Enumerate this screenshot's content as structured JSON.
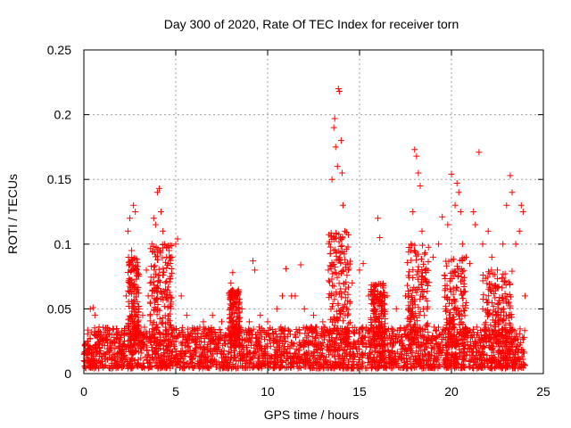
{
  "chart_data": {
    "type": "scatter",
    "title": "Day 300 of 2020, Rate Of TEC Index for receiver torn",
    "xlabel": "GPS time / hours",
    "ylabel": "ROTI / TECUs",
    "xlim": [
      0,
      25
    ],
    "ylim": [
      0,
      0.25
    ],
    "xticks": [
      0,
      5,
      10,
      15,
      20,
      25
    ],
    "xtick_labels": [
      "0",
      "5",
      "10",
      "15",
      "20",
      "25"
    ],
    "yticks": [
      0,
      0.05,
      0.1,
      0.15,
      0.2,
      0.25
    ],
    "ytick_labels": [
      "0",
      "0.05",
      "0.1",
      "0.15",
      "0.2",
      "0.25"
    ],
    "grid": true,
    "marker": "+",
    "marker_color": "#ff0000",
    "series": [
      {
        "name": "",
        "color": "#ff0000",
        "points": [
          [
            0.0,
            0.01
          ],
          [
            0.2,
            0.025
          ],
          [
            0.35,
            0.05
          ],
          [
            0.4,
            0.032
          ],
          [
            0.5,
            0.051
          ],
          [
            0.6,
            0.045
          ],
          [
            0.8,
            0.03
          ],
          [
            1.0,
            0.022
          ],
          [
            1.2,
            0.035
          ],
          [
            1.4,
            0.02
          ],
          [
            1.8,
            0.03
          ],
          [
            2.0,
            0.028
          ],
          [
            2.3,
            0.06
          ],
          [
            2.4,
            0.11
          ],
          [
            2.5,
            0.12
          ],
          [
            2.6,
            0.095
          ],
          [
            2.7,
            0.13
          ],
          [
            2.8,
            0.125
          ],
          [
            3.0,
            0.05
          ],
          [
            3.2,
            0.045
          ],
          [
            3.4,
            0.08
          ],
          [
            3.5,
            0.06
          ],
          [
            3.6,
            0.07
          ],
          [
            3.7,
            0.1
          ],
          [
            3.8,
            0.12
          ],
          [
            3.9,
            0.115
          ],
          [
            4.0,
            0.14
          ],
          [
            4.1,
            0.143
          ],
          [
            4.2,
            0.125
          ],
          [
            4.3,
            0.11
          ],
          [
            4.4,
            0.1
          ],
          [
            4.5,
            0.09
          ],
          [
            4.6,
            0.085
          ],
          [
            4.7,
            0.075
          ],
          [
            4.8,
            0.09
          ],
          [
            5.0,
            0.1
          ],
          [
            5.1,
            0.104
          ],
          [
            5.3,
            0.06
          ],
          [
            5.6,
            0.045
          ],
          [
            6.0,
            0.035
          ],
          [
            6.5,
            0.04
          ],
          [
            7.0,
            0.045
          ],
          [
            7.5,
            0.04
          ],
          [
            8.0,
            0.07
          ],
          [
            8.1,
            0.078
          ],
          [
            8.3,
            0.06
          ],
          [
            8.6,
            0.05
          ],
          [
            9.0,
            0.04
          ],
          [
            9.2,
            0.087
          ],
          [
            9.3,
            0.08
          ],
          [
            9.6,
            0.045
          ],
          [
            10.0,
            0.04
          ],
          [
            10.5,
            0.05
          ],
          [
            10.8,
            0.06
          ],
          [
            11.0,
            0.081
          ],
          [
            11.3,
            0.06
          ],
          [
            11.5,
            0.06
          ],
          [
            11.8,
            0.084
          ],
          [
            12.0,
            0.05
          ],
          [
            12.5,
            0.045
          ],
          [
            13.0,
            0.04
          ],
          [
            13.3,
            0.08
          ],
          [
            13.5,
            0.15
          ],
          [
            13.6,
            0.19
          ],
          [
            13.65,
            0.197
          ],
          [
            13.7,
            0.175
          ],
          [
            13.8,
            0.16
          ],
          [
            13.85,
            0.22
          ],
          [
            13.9,
            0.218
          ],
          [
            14.0,
            0.18
          ],
          [
            14.05,
            0.155
          ],
          [
            14.1,
            0.13
          ],
          [
            14.2,
            0.11
          ],
          [
            14.4,
            0.08
          ],
          [
            14.6,
            0.07
          ],
          [
            15.0,
            0.08
          ],
          [
            15.2,
            0.085
          ],
          [
            15.5,
            0.06
          ],
          [
            15.8,
            0.05
          ],
          [
            16.0,
            0.12
          ],
          [
            16.1,
            0.105
          ],
          [
            16.5,
            0.06
          ],
          [
            17.0,
            0.05
          ],
          [
            17.5,
            0.06
          ],
          [
            17.8,
            0.1
          ],
          [
            17.9,
            0.125
          ],
          [
            18.0,
            0.173
          ],
          [
            18.1,
            0.168
          ],
          [
            18.2,
            0.155
          ],
          [
            18.3,
            0.145
          ],
          [
            18.4,
            0.11
          ],
          [
            18.6,
            0.08
          ],
          [
            19.0,
            0.09
          ],
          [
            19.3,
            0.1
          ],
          [
            19.5,
            0.121
          ],
          [
            19.8,
            0.115
          ],
          [
            20.0,
            0.154
          ],
          [
            20.2,
            0.13
          ],
          [
            20.3,
            0.147
          ],
          [
            20.4,
            0.14
          ],
          [
            20.5,
            0.125
          ],
          [
            20.6,
            0.1
          ],
          [
            20.8,
            0.09
          ],
          [
            21.0,
            0.085
          ],
          [
            21.2,
            0.125
          ],
          [
            21.3,
            0.115
          ],
          [
            21.5,
            0.171
          ],
          [
            21.7,
            0.1
          ],
          [
            22.0,
            0.11
          ],
          [
            22.2,
            0.09
          ],
          [
            22.5,
            0.08
          ],
          [
            22.8,
            0.1
          ],
          [
            23.0,
            0.13
          ],
          [
            23.2,
            0.153
          ],
          [
            23.3,
            0.14
          ],
          [
            23.5,
            0.1
          ],
          [
            23.7,
            0.11
          ],
          [
            23.8,
            0.13
          ],
          [
            23.9,
            0.125
          ],
          [
            24.0,
            0.06
          ]
        ],
        "baseline_band": {
          "description_values": [
            0.005,
            0.035
          ],
          "dense_ranges": [
            [
              0.0,
              0.03
            ],
            [
              0.0,
              0.035
            ]
          ]
        }
      }
    ]
  }
}
